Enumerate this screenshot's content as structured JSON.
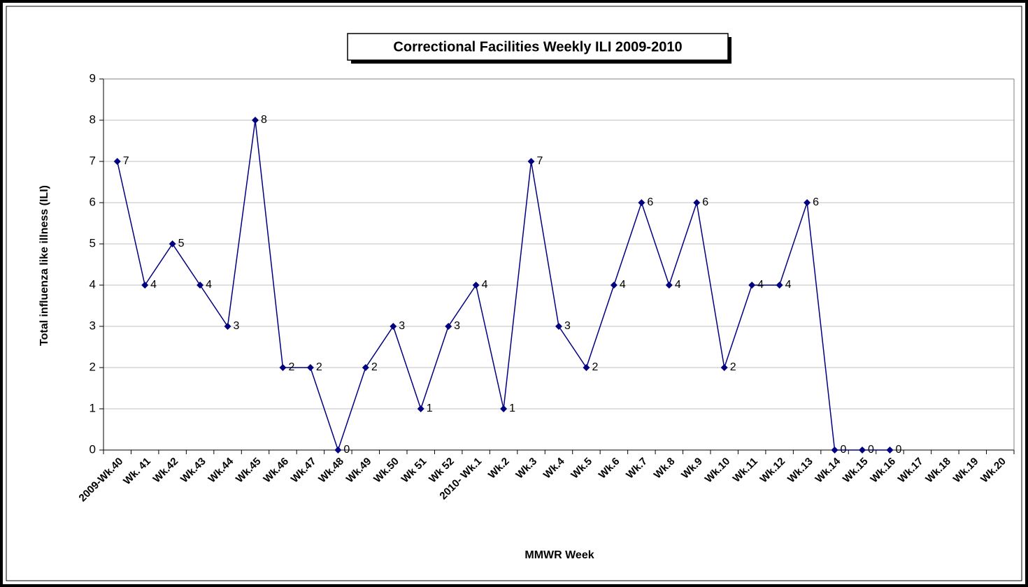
{
  "chart_data": {
    "type": "line",
    "title": "Correctional Facilities Weekly ILI 2009-2010",
    "x_label": "MMWR Week",
    "y_label": "Total influenza like illness (ILI)",
    "categories": [
      "2009-Wk.40",
      "Wk. 41",
      "Wk.42",
      "Wk.43",
      "Wk.44",
      "Wk.45",
      "Wk.46",
      "Wk.47",
      "Wk.48",
      "Wk.49",
      "Wk.50",
      "Wk 51",
      "Wk 52",
      "2010- Wk.1",
      "Wk.2",
      "Wk.3",
      "Wk.4",
      "Wk.5",
      "Wk.6",
      "Wk.7",
      "Wk.8",
      "Wk.9",
      "Wk.10",
      "Wk.11",
      "Wk.12",
      "Wk.13",
      "Wk.14",
      "Wk.15",
      "Wk.16",
      "Wk.17",
      "Wk.18",
      "Wk.19",
      "Wk.20"
    ],
    "values": [
      7,
      4,
      5,
      4,
      3,
      8,
      2,
      2,
      0,
      2,
      3,
      1,
      3,
      4,
      1,
      7,
      3,
      2,
      4,
      6,
      4,
      6,
      2,
      4,
      4,
      6,
      0,
      0,
      0,
      null,
      null,
      null,
      null
    ],
    "color": "#000080",
    "ylim": [
      0,
      9
    ],
    "yticks": [
      0,
      1,
      2,
      3,
      4,
      5,
      6,
      7,
      8,
      9
    ],
    "grid": true
  }
}
